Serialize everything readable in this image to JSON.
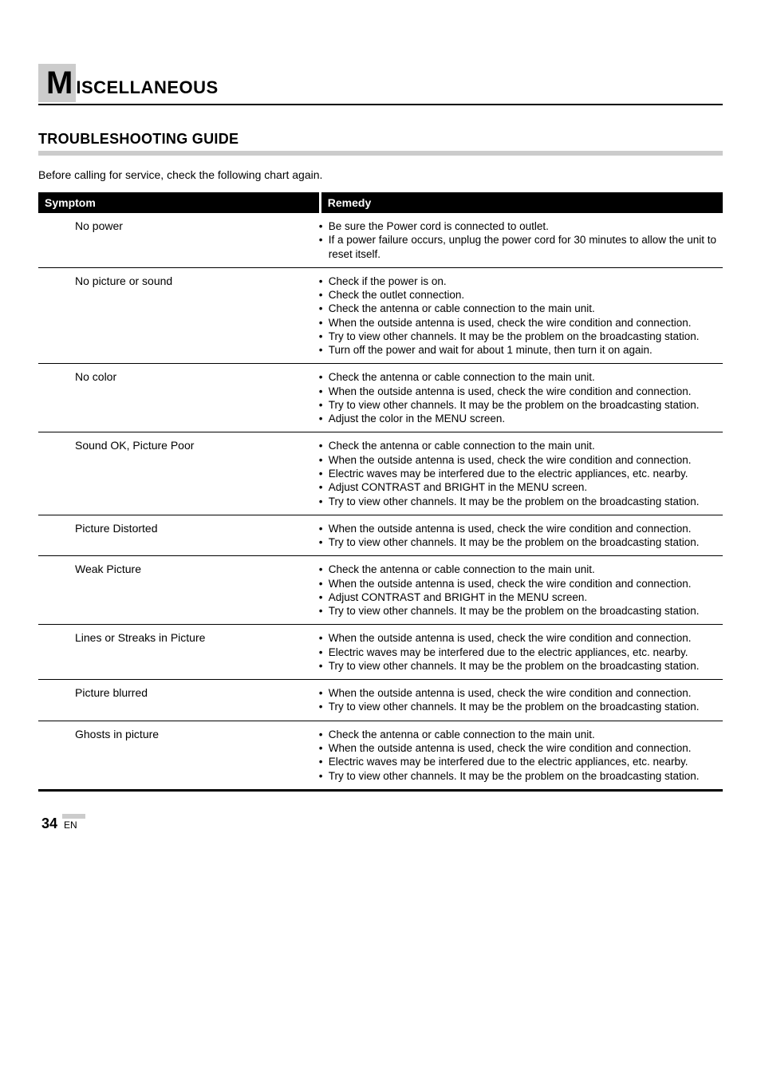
{
  "title": {
    "big_letter": "M",
    "rest": "ISCELLANEOUS"
  },
  "subheading": "TROUBLESHOOTING GUIDE",
  "intro": "Before calling for service, check the following chart again.",
  "table": {
    "head_symptom": "Symptom",
    "head_remedy": "Remedy",
    "rows": [
      {
        "symptom": "No power",
        "remedies": [
          "Be sure the Power cord is connected to outlet.",
          "If a power failure occurs, unplug the power cord for 30 minutes to allow the unit to reset itself."
        ]
      },
      {
        "symptom": "No picture or sound",
        "remedies": [
          "Check if the power is on.",
          "Check the outlet connection.",
          "Check the antenna or cable connection to the main unit.",
          "When the outside antenna is used, check the wire condition and connection.",
          "Try to view other channels. It may be the problem on the broadcasting station.",
          "Turn off the power and wait for about 1 minute, then turn it on again."
        ]
      },
      {
        "symptom": "No color",
        "remedies": [
          "Check the antenna or cable connection to the main unit.",
          "When the outside antenna is used, check the wire condition and connection.",
          "Try to view other channels. It may be the problem on the broadcasting station.",
          "Adjust the color in the MENU screen."
        ]
      },
      {
        "symptom": "Sound OK, Picture Poor",
        "remedies": [
          "Check the antenna or cable connection to the main unit.",
          "When the outside antenna is used, check the wire condition and connection.",
          "Electric waves may be interfered due to the electric appliances, etc. nearby.",
          "Adjust CONTRAST and BRIGHT in the MENU screen.",
          "Try to view other channels. It may be the problem on the broadcasting station."
        ]
      },
      {
        "symptom": "Picture Distorted",
        "remedies": [
          "When the outside antenna is used, check the wire condition and connection.",
          "Try to view other channels. It may be the problem on the broadcasting station."
        ]
      },
      {
        "symptom": "Weak Picture",
        "remedies": [
          "Check the antenna or cable connection to the main unit.",
          "When the outside antenna is used, check the wire condition and connection.",
          "Adjust CONTRAST and BRIGHT in the MENU screen.",
          "Try to view other channels. It may be the problem on the broadcasting station."
        ]
      },
      {
        "symptom": "Lines or Streaks in Picture",
        "remedies": [
          "When the outside antenna is used, check the wire condition and connection.",
          "Electric waves may be interfered due to the electric appliances, etc. nearby.",
          "Try to view other channels. It may be the problem on the broadcasting station."
        ]
      },
      {
        "symptom": "Picture blurred",
        "remedies": [
          "When the outside antenna is used, check the wire condition and connection.",
          "Try to view other channels. It may be the problem on the broadcasting station."
        ]
      },
      {
        "symptom": "Ghosts in picture",
        "remedies": [
          "Check the antenna or cable connection to the main unit.",
          "When the outside antenna is used, check the wire condition and connection.",
          "Electric waves may be interfered due to the electric appliances, etc. nearby.",
          "Try to view other channels. It may be the problem on the broadcasting station."
        ]
      }
    ]
  },
  "footer": {
    "page_num": "34",
    "lang": "EN"
  },
  "colors": {
    "gray_box": "#cccccc",
    "black": "#000000",
    "white": "#ffffff"
  }
}
